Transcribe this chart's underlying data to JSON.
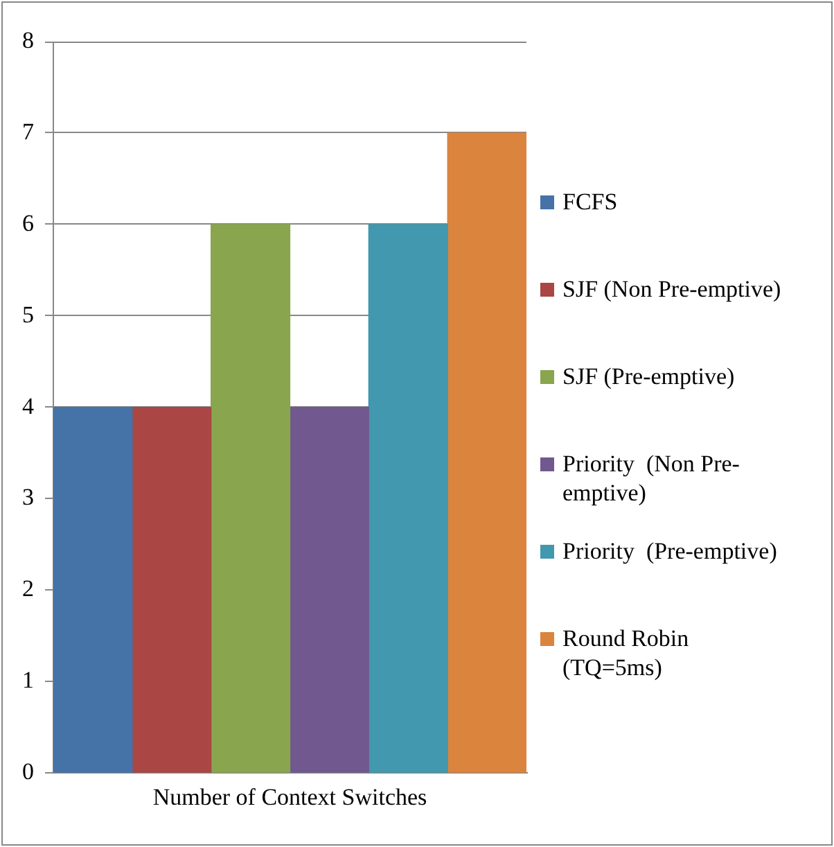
{
  "chart_data": {
    "type": "bar",
    "categories": [
      null,
      null,
      null,
      null,
      null,
      null
    ],
    "xlabel": "Number of Context Switches",
    "series": [
      {
        "name": "FCFS",
        "color": "#4572a7",
        "values": [
          4,
          null,
          null,
          null,
          null,
          null
        ]
      },
      {
        "name": "SJF (Non Pre-emptive)",
        "color": "#aa4643",
        "values": [
          null,
          4,
          null,
          null,
          null,
          null
        ]
      },
      {
        "name": "SJF (Pre-emptive)",
        "color": "#89a54e",
        "values": [
          null,
          null,
          6,
          null,
          null,
          null
        ]
      },
      {
        "name": "Priority  (Non Pre-emptive)",
        "color": "#71588f",
        "values": [
          null,
          null,
          null,
          4,
          null,
          null
        ]
      },
      {
        "name": "Priority  (Pre-emptive)",
        "color": "#4198af",
        "values": [
          null,
          null,
          null,
          null,
          6,
          null
        ]
      },
      {
        "name": "Round Robin (TQ=5ms)",
        "color": "#db843d",
        "values": [
          null,
          null,
          null,
          null,
          null,
          7
        ]
      }
    ],
    "ylim": [
      0,
      8
    ],
    "yticks": [
      0,
      1,
      2,
      3,
      4,
      5,
      6,
      7,
      8
    ],
    "grid": "y",
    "legend": "right"
  }
}
